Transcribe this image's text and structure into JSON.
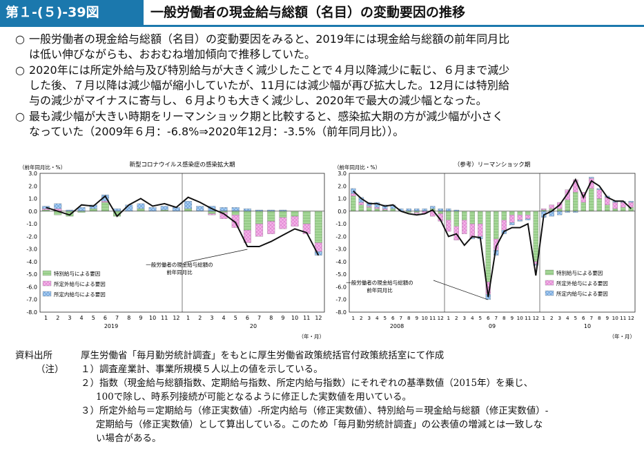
{
  "header": {
    "figure_id": "第１-(５)-39図",
    "title": "一般労働者の現金給与総額（名目）の変動要因の推移"
  },
  "summary": {
    "bullet_mark": "○",
    "paragraphs": [
      [
        "一般労働者の現金給与総額（名目）の変動要因をみると、2019年には現金給与総額の前年同月比",
        "は低い伸びながらも、おおむね増加傾向で推移していた。"
      ],
      [
        "2020年には所定外給与及び特別給与が大きく減少したことで４月以降減少に転じ、６月まで減少",
        "した後、７月以降は減少幅が縮小していたが、11月には減少幅が再び拡大した。12月には特別給",
        "与の減少がマイナスに寄与し、６月よりも大きく減少し、2020年で最大の減少幅となった。"
      ],
      [
        "最も減少幅が大きい時期をリーマンショック期と比較すると、感染拡大期の方が減少幅が小さく",
        "なっていた（2009年６月：-6.8%⇒2020年12月：-3.5%（前年同月比））。"
      ]
    ]
  },
  "colors": {
    "special": "#a7d89a",
    "overtime": "#f3b4e8",
    "scheduled": "#a7cdf2",
    "line": "#111111",
    "header": "#1b78ad"
  },
  "chart_data": [
    {
      "type": "bar",
      "title": "新型コロナウイルス感染症の感染拡大期",
      "ylabel": "（前年同月比・%）",
      "xlabel": "（年・月）",
      "ylim": [
        -8.0,
        3.0
      ],
      "yticks": [
        "3.0",
        "2.0",
        "1.0",
        "0.0",
        "-1.0",
        "-2.0",
        "-3.0",
        "-4.0",
        "-5.0",
        "-6.0",
        "-7.0",
        "-8.0"
      ],
      "categories": [
        "1",
        "2",
        "3",
        "4",
        "5",
        "6",
        "7",
        "8",
        "9",
        "10",
        "11",
        "12",
        "1",
        "2",
        "3",
        "4",
        "5",
        "6",
        "7",
        "8",
        "9",
        "10",
        "11",
        "12"
      ],
      "year_labels": [
        "2019",
        "20"
      ],
      "legend_position": "bottom-left",
      "annotation": [
        "一般労働者の現金給与総額の",
        "前年同月比"
      ],
      "series": [
        {
          "name": "特別給与による要因",
          "values": [
            0.1,
            -0.3,
            -0.4,
            -0.1,
            0.2,
            0.7,
            -0.4,
            0.0,
            0.2,
            0.0,
            0.1,
            0.0,
            0.2,
            0.0,
            -0.2,
            -0.1,
            -0.3,
            -1.5,
            -1.0,
            -0.8,
            -0.5,
            -0.4,
            -1.0,
            -2.5
          ]
        },
        {
          "name": "所定外給与による要因",
          "values": [
            0.1,
            0.2,
            0.0,
            0.0,
            0.0,
            0.1,
            0.0,
            0.0,
            0.0,
            0.0,
            0.0,
            0.0,
            0.0,
            0.0,
            -0.1,
            -0.5,
            -1.0,
            -1.0,
            -1.0,
            -1.0,
            -0.9,
            -0.8,
            -0.8,
            -0.7
          ]
        },
        {
          "name": "所定内給与による要因",
          "values": [
            0.2,
            0.4,
            0.1,
            0.3,
            0.3,
            0.5,
            0.2,
            0.5,
            0.4,
            0.3,
            0.3,
            0.3,
            0.6,
            0.4,
            0.4,
            0.3,
            0.3,
            0.2,
            0.1,
            0.1,
            0.1,
            0.0,
            0.0,
            -0.3
          ]
        }
      ],
      "line": {
        "name": "一般労働者の現金給与総額の前年同月比",
        "values": [
          0.3,
          0.0,
          -0.3,
          0.5,
          0.4,
          1.2,
          -0.4,
          0.5,
          1.0,
          0.4,
          0.6,
          0.3,
          1.1,
          0.7,
          0.2,
          -0.2,
          -0.9,
          -2.8,
          -2.8,
          -2.4,
          -1.9,
          -1.4,
          -1.7,
          -3.5
        ]
      }
    },
    {
      "type": "bar",
      "title": "（参考）リーマンショック期",
      "ylabel": "（前年同月比・%）",
      "xlabel": "（年・月）",
      "ylim": [
        -8.0,
        3.0
      ],
      "yticks": [
        "3.0",
        "2.0",
        "1.0",
        "0.0",
        "-1.0",
        "-2.0",
        "-3.0",
        "-4.0",
        "-5.0",
        "-6.0",
        "-7.0",
        "-8.0"
      ],
      "categories": [
        "1",
        "2",
        "3",
        "4",
        "5",
        "6",
        "7",
        "8",
        "9",
        "10",
        "11",
        "12",
        "1",
        "2",
        "3",
        "4",
        "5",
        "6",
        "7",
        "8",
        "9",
        "10",
        "11",
        "12",
        "1",
        "2",
        "3",
        "4",
        "5",
        "6",
        "7",
        "8",
        "9",
        "10",
        "11",
        "12"
      ],
      "year_labels": [
        "2008",
        "09",
        "10"
      ],
      "legend_position": "middle-right",
      "annotation": [
        "一般労働者の現金給与総額の",
        "前年同月比"
      ],
      "series": [
        {
          "name": "特別給与による要因",
          "values": [
            1.2,
            0.5,
            0.3,
            0.2,
            0.1,
            0.2,
            0.0,
            -0.1,
            -0.1,
            0.0,
            0.2,
            -0.2,
            -0.7,
            -1.2,
            -0.7,
            -1.0,
            -1.0,
            -5.6,
            -2.2,
            -0.7,
            -0.3,
            -0.3,
            -0.3,
            -4.0,
            0.1,
            0.2,
            0.2,
            0.9,
            1.5,
            0.7,
            1.8,
            1.0,
            0.5,
            0.2,
            0.3,
            0.3
          ]
        },
        {
          "name": "所定外給与による要因",
          "values": [
            0.2,
            0.2,
            0.1,
            0.1,
            0.1,
            0.0,
            0.0,
            0.0,
            -0.1,
            -0.2,
            -0.4,
            -0.6,
            -0.9,
            -1.1,
            -1.1,
            -1.1,
            -1.0,
            -1.0,
            -0.9,
            -0.8,
            -0.6,
            -0.4,
            -0.3,
            -0.2,
            0.1,
            0.3,
            0.5,
            0.8,
            1.0,
            0.8,
            0.8,
            0.7,
            0.6,
            0.5,
            0.4,
            0.4
          ]
        },
        {
          "name": "所定内給与による要因",
          "values": [
            0.4,
            0.4,
            0.3,
            0.4,
            0.3,
            0.3,
            0.2,
            0.2,
            0.2,
            0.2,
            0.2,
            0.2,
            0.2,
            0.1,
            0.0,
            -0.1,
            -0.2,
            -0.4,
            -0.4,
            -0.3,
            -0.2,
            -0.1,
            -0.1,
            -0.1,
            -0.5,
            -0.4,
            -0.3,
            -0.1,
            -0.1,
            0.0,
            0.1,
            0.1,
            0.1,
            0.1,
            0.1,
            0.1
          ]
        }
      ],
      "line": {
        "name": "一般労働者の現金給与総額の前年同月比",
        "values": [
          1.6,
          1.0,
          0.6,
          0.6,
          0.4,
          0.5,
          0.0,
          -0.2,
          -0.3,
          -0.2,
          0.1,
          -0.7,
          -2.0,
          -1.8,
          -2.7,
          -2.0,
          -2.1,
          -6.8,
          -2.8,
          -1.6,
          -1.3,
          -1.3,
          -1.0,
          -5.1,
          -0.3,
          0.0,
          0.5,
          1.4,
          2.5,
          1.1,
          2.4,
          2.0,
          1.1,
          0.8,
          0.8,
          0.2
        ]
      }
    }
  ],
  "notes": {
    "source_label": "資料出所",
    "source_text": "厚生労働省「毎月勤労統計調査」をもとに厚生労働省政策統括官付政策統括室にて作成",
    "note_label": "（注）",
    "items": [
      [
        "１）調査産業計、事業所規模５人以上の値を示している。"
      ],
      [
        "２）指数（現金給与総額指数、定期給与指数、所定内給与指数）にそれぞれの基準数値（2015年）を乗じ、",
        "100で除し、時系列接続が可能となるように修正した実数値を用いている。"
      ],
      [
        "３）所定外給与＝定期給与（修正実数値）-所定内給与（修正実数値）、特別給与＝現金給与総額（修正実数値）-",
        "定期給与（修正実数値）として算出している。このため「毎月勤労統計調査」の公表値の増減とは一致しな",
        "い場合がある。"
      ]
    ]
  }
}
